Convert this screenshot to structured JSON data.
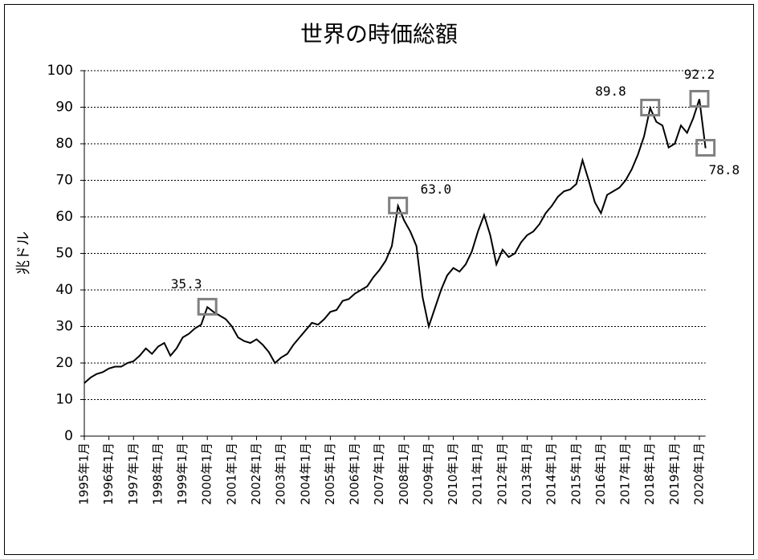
{
  "chart_data": {
    "type": "line",
    "title": "世界の時価総額",
    "y_label": "兆ドル",
    "categories": [
      "1995年1月",
      null,
      null,
      null,
      "1996年1月",
      null,
      null,
      null,
      "1997年1月",
      null,
      null,
      null,
      "1998年1月",
      null,
      null,
      null,
      "1999年1月",
      null,
      null,
      null,
      "2000年1月",
      null,
      null,
      null,
      "2001年1月",
      null,
      null,
      null,
      "2002年1月",
      null,
      null,
      null,
      "2003年1月",
      null,
      null,
      null,
      "2004年1月",
      null,
      null,
      null,
      "2005年1月",
      null,
      null,
      null,
      "2006年1月",
      null,
      null,
      null,
      "2007年1月",
      null,
      null,
      null,
      "2008年1月",
      null,
      null,
      null,
      "2009年1月",
      null,
      null,
      null,
      "2010年1月",
      null,
      null,
      null,
      "2011年1月",
      null,
      null,
      null,
      "2012年1月",
      null,
      null,
      null,
      "2013年1月",
      null,
      null,
      null,
      "2014年1月",
      null,
      null,
      null,
      "2015年1月",
      null,
      null,
      null,
      "2016年1月",
      null,
      null,
      null,
      "2017年1月",
      null,
      null,
      null,
      "2018年1月",
      null,
      null,
      null,
      "2019年1月",
      null,
      null,
      null,
      "2020年1月",
      null
    ],
    "values": [
      14.5,
      16,
      17,
      17.5,
      18.5,
      19,
      19,
      20,
      20.5,
      22,
      24,
      22.5,
      24.5,
      25.5,
      22,
      24,
      27,
      28,
      29.5,
      30.5,
      35.3,
      34,
      33,
      32,
      30,
      27,
      26,
      25.5,
      26.5,
      25,
      23,
      20,
      21.5,
      22.5,
      25,
      27,
      29,
      31,
      30.5,
      32,
      34,
      34.5,
      37,
      37.5,
      39,
      40,
      41,
      43.5,
      45.5,
      48,
      52,
      63.0,
      59,
      56,
      52,
      38,
      30,
      35,
      40,
      44,
      46,
      45,
      47,
      50.5,
      56,
      60.5,
      55,
      47,
      51,
      49,
      50,
      53,
      55,
      56,
      58,
      61,
      63,
      65.5,
      67,
      67.5,
      69,
      75.5,
      70,
      64,
      61,
      66,
      67,
      68,
      70,
      73,
      77,
      82,
      89.8,
      86,
      85,
      79,
      80,
      85,
      83,
      87,
      92.2,
      78.8
    ],
    "color": "#000000",
    "ylim": [
      0,
      100
    ],
    "yticks": [
      0,
      10,
      20,
      30,
      40,
      50,
      60,
      70,
      80,
      90,
      100
    ],
    "grid": true,
    "annotations": [
      {
        "text": "35.3",
        "value": 35.3
      },
      {
        "text": "63.0",
        "value": 63.0
      },
      {
        "text": "89.8",
        "value": 89.8
      },
      {
        "text": "92.2",
        "value": 92.2
      },
      {
        "text": "78.8",
        "value": 78.8
      }
    ]
  }
}
